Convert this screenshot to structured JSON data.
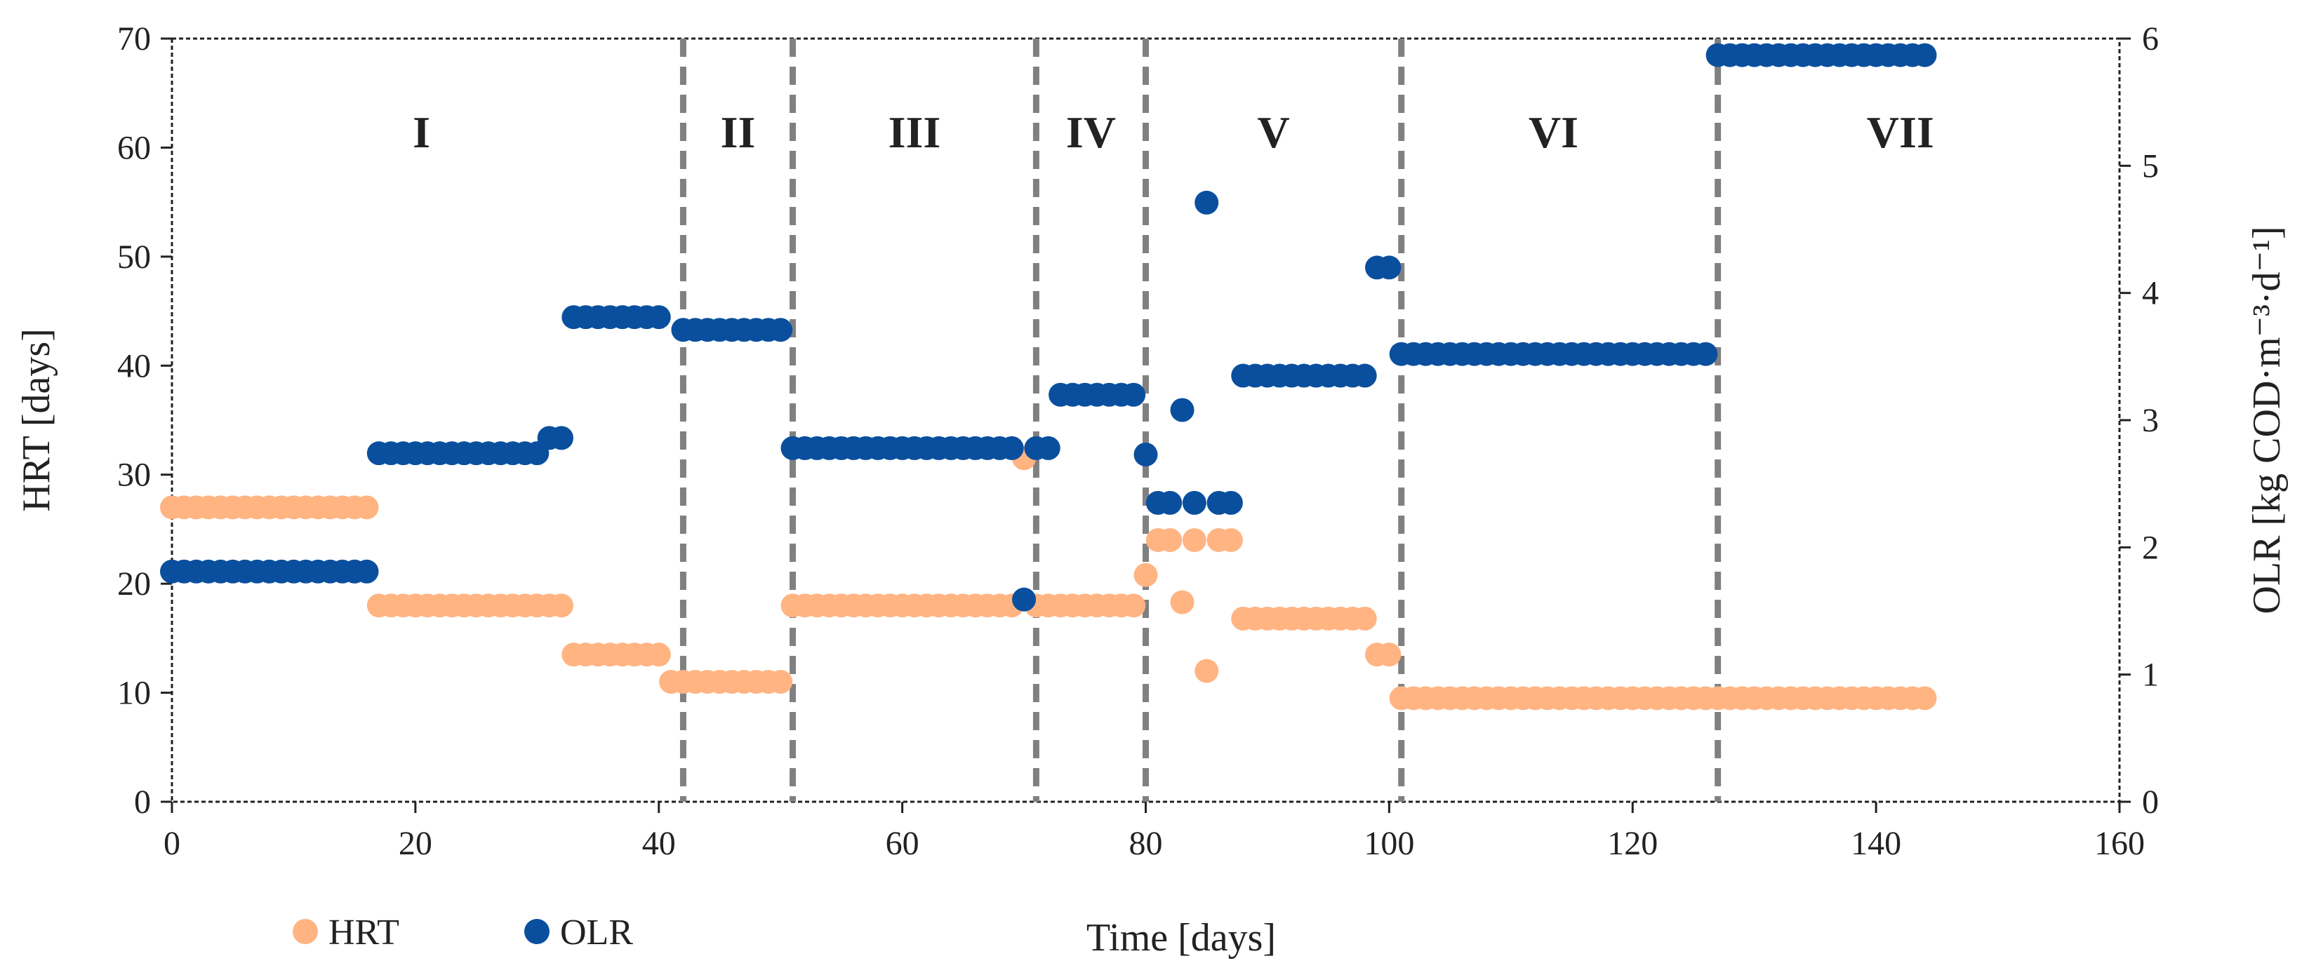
{
  "chart_data": {
    "type": "scatter",
    "title": "",
    "xlabel": "Time [days]",
    "ylabel": "HRT [days]",
    "y2label": "OLR [kg COD·m⁻³·d⁻¹]",
    "xlim": [
      0,
      160
    ],
    "ylim": [
      0,
      70
    ],
    "y2lim": [
      0,
      6
    ],
    "xticks": [
      0,
      20,
      40,
      60,
      80,
      100,
      120,
      140,
      160
    ],
    "yticks": [
      0,
      10,
      20,
      30,
      40,
      50,
      60,
      70
    ],
    "y2ticks": [
      0,
      1,
      2,
      3,
      4,
      5,
      6
    ],
    "phase_boundaries": [
      42,
      51,
      71,
      80,
      101,
      127
    ],
    "phases": [
      {
        "label": "I",
        "x": 20.5
      },
      {
        "label": "II",
        "x": 46.5
      },
      {
        "label": "III",
        "x": 61
      },
      {
        "label": "IV",
        "x": 75.5
      },
      {
        "label": "V",
        "x": 90.5
      },
      {
        "label": "VI",
        "x": 113.5
      },
      {
        "label": "VII",
        "x": 142
      }
    ],
    "legend_position": "bottom-left",
    "series": [
      {
        "name": "HRT",
        "axis": "left",
        "color": "#FFB482",
        "points": [
          [
            0,
            27
          ],
          [
            1,
            27
          ],
          [
            2,
            27
          ],
          [
            3,
            27
          ],
          [
            4,
            27
          ],
          [
            5,
            27
          ],
          [
            6,
            27
          ],
          [
            7,
            27
          ],
          [
            8,
            27
          ],
          [
            9,
            27
          ],
          [
            10,
            27
          ],
          [
            11,
            27
          ],
          [
            12,
            27
          ],
          [
            13,
            27
          ],
          [
            14,
            27
          ],
          [
            15,
            27
          ],
          [
            16,
            27
          ],
          [
            17,
            18
          ],
          [
            18,
            18
          ],
          [
            19,
            18
          ],
          [
            20,
            18
          ],
          [
            21,
            18
          ],
          [
            22,
            18
          ],
          [
            23,
            18
          ],
          [
            24,
            18
          ],
          [
            25,
            18
          ],
          [
            26,
            18
          ],
          [
            27,
            18
          ],
          [
            28,
            18
          ],
          [
            29,
            18
          ],
          [
            30,
            18
          ],
          [
            31,
            18
          ],
          [
            32,
            18
          ],
          [
            33,
            13.5
          ],
          [
            34,
            13.5
          ],
          [
            35,
            13.5
          ],
          [
            36,
            13.5
          ],
          [
            37,
            13.5
          ],
          [
            38,
            13.5
          ],
          [
            39,
            13.5
          ],
          [
            40,
            13.5
          ],
          [
            41,
            11
          ],
          [
            42,
            11
          ],
          [
            43,
            11
          ],
          [
            44,
            11
          ],
          [
            45,
            11
          ],
          [
            46,
            11
          ],
          [
            47,
            11
          ],
          [
            48,
            11
          ],
          [
            49,
            11
          ],
          [
            50,
            11
          ],
          [
            51,
            18
          ],
          [
            52,
            18
          ],
          [
            53,
            18
          ],
          [
            54,
            18
          ],
          [
            55,
            18
          ],
          [
            56,
            18
          ],
          [
            57,
            18
          ],
          [
            58,
            18
          ],
          [
            59,
            18
          ],
          [
            60,
            18
          ],
          [
            61,
            18
          ],
          [
            62,
            18
          ],
          [
            63,
            18
          ],
          [
            64,
            18
          ],
          [
            65,
            18
          ],
          [
            66,
            18
          ],
          [
            67,
            18
          ],
          [
            68,
            18
          ],
          [
            69,
            18
          ],
          [
            70,
            31.5
          ],
          [
            71,
            18
          ],
          [
            72,
            18
          ],
          [
            73,
            18
          ],
          [
            74,
            18
          ],
          [
            75,
            18
          ],
          [
            76,
            18
          ],
          [
            77,
            18
          ],
          [
            78,
            18
          ],
          [
            79,
            18
          ],
          [
            80,
            20.8
          ],
          [
            81,
            24
          ],
          [
            82,
            24
          ],
          [
            83,
            18.3
          ],
          [
            84,
            24
          ],
          [
            85,
            12
          ],
          [
            86,
            24
          ],
          [
            87,
            24
          ],
          [
            88,
            16.8
          ],
          [
            89,
            16.8
          ],
          [
            90,
            16.8
          ],
          [
            91,
            16.8
          ],
          [
            92,
            16.8
          ],
          [
            93,
            16.8
          ],
          [
            94,
            16.8
          ],
          [
            95,
            16.8
          ],
          [
            96,
            16.8
          ],
          [
            97,
            16.8
          ],
          [
            98,
            16.8
          ],
          [
            99,
            13.5
          ],
          [
            100,
            13.5
          ],
          [
            101,
            9.5
          ],
          [
            102,
            9.5
          ],
          [
            103,
            9.5
          ],
          [
            104,
            9.5
          ],
          [
            105,
            9.5
          ],
          [
            106,
            9.5
          ],
          [
            107,
            9.5
          ],
          [
            108,
            9.5
          ],
          [
            109,
            9.5
          ],
          [
            110,
            9.5
          ],
          [
            111,
            9.5
          ],
          [
            112,
            9.5
          ],
          [
            113,
            9.5
          ],
          [
            114,
            9.5
          ],
          [
            115,
            9.5
          ],
          [
            116,
            9.5
          ],
          [
            117,
            9.5
          ],
          [
            118,
            9.5
          ],
          [
            119,
            9.5
          ],
          [
            120,
            9.5
          ],
          [
            121,
            9.5
          ],
          [
            122,
            9.5
          ],
          [
            123,
            9.5
          ],
          [
            124,
            9.5
          ],
          [
            125,
            9.5
          ],
          [
            126,
            9.5
          ],
          [
            127,
            9.5
          ],
          [
            128,
            9.5
          ],
          [
            129,
            9.5
          ],
          [
            130,
            9.5
          ],
          [
            131,
            9.5
          ],
          [
            132,
            9.5
          ],
          [
            133,
            9.5
          ],
          [
            134,
            9.5
          ],
          [
            135,
            9.5
          ],
          [
            136,
            9.5
          ],
          [
            137,
            9.5
          ],
          [
            138,
            9.5
          ],
          [
            139,
            9.5
          ],
          [
            140,
            9.5
          ],
          [
            141,
            9.5
          ],
          [
            142,
            9.5
          ],
          [
            143,
            9.5
          ],
          [
            144,
            9.5
          ]
        ]
      },
      {
        "name": "OLR",
        "axis": "right",
        "color": "#0A4F9E",
        "points": [
          [
            0,
            1.81
          ],
          [
            1,
            1.81
          ],
          [
            2,
            1.81
          ],
          [
            3,
            1.81
          ],
          [
            4,
            1.81
          ],
          [
            5,
            1.81
          ],
          [
            6,
            1.81
          ],
          [
            7,
            1.81
          ],
          [
            8,
            1.81
          ],
          [
            9,
            1.81
          ],
          [
            10,
            1.81
          ],
          [
            11,
            1.81
          ],
          [
            12,
            1.81
          ],
          [
            13,
            1.81
          ],
          [
            14,
            1.81
          ],
          [
            15,
            1.81
          ],
          [
            16,
            1.81
          ],
          [
            17,
            2.74
          ],
          [
            18,
            2.74
          ],
          [
            19,
            2.74
          ],
          [
            20,
            2.74
          ],
          [
            21,
            2.74
          ],
          [
            22,
            2.74
          ],
          [
            23,
            2.74
          ],
          [
            24,
            2.74
          ],
          [
            25,
            2.74
          ],
          [
            26,
            2.74
          ],
          [
            27,
            2.74
          ],
          [
            28,
            2.74
          ],
          [
            29,
            2.74
          ],
          [
            30,
            2.74
          ],
          [
            31,
            2.86
          ],
          [
            32,
            2.86
          ],
          [
            33,
            3.81
          ],
          [
            34,
            3.81
          ],
          [
            35,
            3.81
          ],
          [
            36,
            3.81
          ],
          [
            37,
            3.81
          ],
          [
            38,
            3.81
          ],
          [
            39,
            3.81
          ],
          [
            40,
            3.81
          ],
          [
            42,
            3.71
          ],
          [
            43,
            3.71
          ],
          [
            44,
            3.71
          ],
          [
            45,
            3.71
          ],
          [
            46,
            3.71
          ],
          [
            47,
            3.71
          ],
          [
            48,
            3.71
          ],
          [
            49,
            3.71
          ],
          [
            50,
            3.71
          ],
          [
            51,
            2.78
          ],
          [
            52,
            2.78
          ],
          [
            53,
            2.78
          ],
          [
            54,
            2.78
          ],
          [
            55,
            2.78
          ],
          [
            56,
            2.78
          ],
          [
            57,
            2.78
          ],
          [
            58,
            2.78
          ],
          [
            59,
            2.78
          ],
          [
            60,
            2.78
          ],
          [
            61,
            2.78
          ],
          [
            62,
            2.78
          ],
          [
            63,
            2.78
          ],
          [
            64,
            2.78
          ],
          [
            65,
            2.78
          ],
          [
            66,
            2.78
          ],
          [
            67,
            2.78
          ],
          [
            68,
            2.78
          ],
          [
            69,
            2.78
          ],
          [
            70,
            1.59
          ],
          [
            71,
            2.78
          ],
          [
            72,
            2.78
          ],
          [
            73,
            3.2
          ],
          [
            74,
            3.2
          ],
          [
            75,
            3.2
          ],
          [
            76,
            3.2
          ],
          [
            77,
            3.2
          ],
          [
            78,
            3.2
          ],
          [
            79,
            3.2
          ],
          [
            80,
            2.73
          ],
          [
            81,
            2.35
          ],
          [
            82,
            2.35
          ],
          [
            83,
            3.08
          ],
          [
            84,
            2.35
          ],
          [
            85,
            4.71
          ],
          [
            86,
            2.35
          ],
          [
            87,
            2.35
          ],
          [
            88,
            3.35
          ],
          [
            89,
            3.35
          ],
          [
            90,
            3.35
          ],
          [
            91,
            3.35
          ],
          [
            92,
            3.35
          ],
          [
            93,
            3.35
          ],
          [
            94,
            3.35
          ],
          [
            95,
            3.35
          ],
          [
            96,
            3.35
          ],
          [
            97,
            3.35
          ],
          [
            98,
            3.35
          ],
          [
            99,
            4.2
          ],
          [
            100,
            4.2
          ],
          [
            101,
            3.52
          ],
          [
            102,
            3.52
          ],
          [
            103,
            3.52
          ],
          [
            104,
            3.52
          ],
          [
            105,
            3.52
          ],
          [
            106,
            3.52
          ],
          [
            107,
            3.52
          ],
          [
            108,
            3.52
          ],
          [
            109,
            3.52
          ],
          [
            110,
            3.52
          ],
          [
            111,
            3.52
          ],
          [
            112,
            3.52
          ],
          [
            113,
            3.52
          ],
          [
            114,
            3.52
          ],
          [
            115,
            3.52
          ],
          [
            116,
            3.52
          ],
          [
            117,
            3.52
          ],
          [
            118,
            3.52
          ],
          [
            119,
            3.52
          ],
          [
            120,
            3.52
          ],
          [
            121,
            3.52
          ],
          [
            122,
            3.52
          ],
          [
            123,
            3.52
          ],
          [
            124,
            3.52
          ],
          [
            125,
            3.52
          ],
          [
            126,
            3.52
          ],
          [
            127,
            5.87
          ],
          [
            128,
            5.87
          ],
          [
            129,
            5.87
          ],
          [
            130,
            5.87
          ],
          [
            131,
            5.87
          ],
          [
            132,
            5.87
          ],
          [
            133,
            5.87
          ],
          [
            134,
            5.87
          ],
          [
            135,
            5.87
          ],
          [
            136,
            5.87
          ],
          [
            137,
            5.87
          ],
          [
            138,
            5.87
          ],
          [
            139,
            5.87
          ],
          [
            140,
            5.87
          ],
          [
            141,
            5.87
          ],
          [
            142,
            5.87
          ],
          [
            143,
            5.87
          ],
          [
            144,
            5.87
          ]
        ]
      }
    ]
  }
}
